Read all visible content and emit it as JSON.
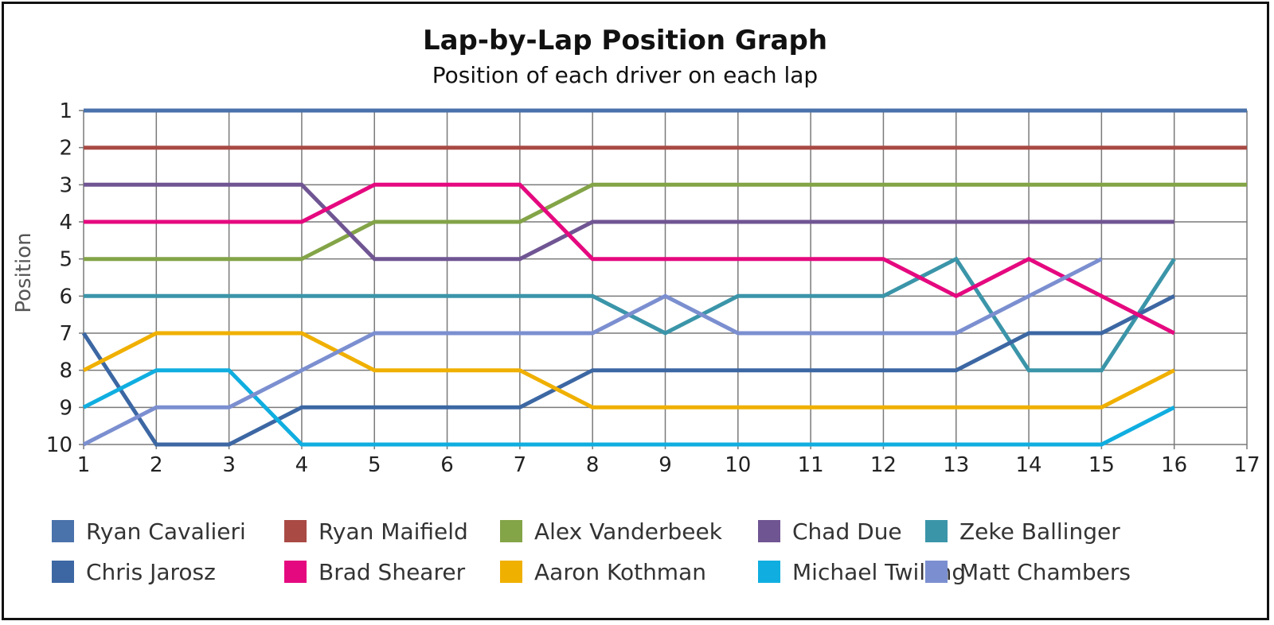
{
  "chart_data": {
    "type": "line",
    "title": "Lap-by-Lap Position Graph",
    "subtitle": "Position of each driver on each lap",
    "xlabel": "",
    "ylabel": "Position",
    "x_ticks": [
      1,
      2,
      3,
      4,
      5,
      6,
      7,
      8,
      9,
      10,
      11,
      12,
      13,
      14,
      15,
      16,
      17
    ],
    "y_ticks": [
      1,
      2,
      3,
      4,
      5,
      6,
      7,
      8,
      9,
      10
    ],
    "xlim": [
      1,
      17
    ],
    "ylim": [
      10,
      1
    ],
    "y_inverted": true,
    "grid": true,
    "legend_position": "bottom",
    "series": [
      {
        "name": "Ryan Cavalieri",
        "color": "#4a72ab",
        "x": [
          1,
          2,
          3,
          4,
          5,
          6,
          7,
          8,
          9,
          10,
          11,
          12,
          13,
          14,
          15,
          16,
          17
        ],
        "values": [
          1,
          1,
          1,
          1,
          1,
          1,
          1,
          1,
          1,
          1,
          1,
          1,
          1,
          1,
          1,
          1,
          1
        ]
      },
      {
        "name": "Ryan Maifield",
        "color": "#a94a45",
        "x": [
          1,
          2,
          3,
          4,
          5,
          6,
          7,
          8,
          9,
          10,
          11,
          12,
          13,
          14,
          15,
          16,
          17
        ],
        "values": [
          2,
          2,
          2,
          2,
          2,
          2,
          2,
          2,
          2,
          2,
          2,
          2,
          2,
          2,
          2,
          2,
          2
        ]
      },
      {
        "name": "Alex Vanderbeek",
        "color": "#83a447",
        "x": [
          1,
          2,
          3,
          4,
          5,
          6,
          7,
          8,
          9,
          10,
          11,
          12,
          13,
          14,
          15,
          16,
          17
        ],
        "values": [
          5,
          5,
          5,
          5,
          4,
          4,
          4,
          3,
          3,
          3,
          3,
          3,
          3,
          3,
          3,
          3,
          3
        ]
      },
      {
        "name": "Chad Due",
        "color": "#705593",
        "x": [
          1,
          2,
          3,
          4,
          5,
          6,
          7,
          8,
          9,
          10,
          11,
          12,
          13,
          14,
          15,
          16
        ],
        "values": [
          3,
          3,
          3,
          3,
          5,
          5,
          5,
          4,
          4,
          4,
          4,
          4,
          4,
          4,
          4,
          4
        ]
      },
      {
        "name": "Zeke Ballinger",
        "color": "#3b95a9",
        "x": [
          1,
          2,
          3,
          4,
          5,
          6,
          7,
          8,
          9,
          10,
          11,
          12,
          13,
          14,
          15,
          16
        ],
        "values": [
          6,
          6,
          6,
          6,
          6,
          6,
          6,
          6,
          7,
          6,
          6,
          6,
          5,
          8,
          8,
          5
        ]
      },
      {
        "name": "Chris Jarosz",
        "color": "#3c67a3",
        "x": [
          1,
          2,
          3,
          4,
          5,
          6,
          7,
          8,
          9,
          10,
          11,
          12,
          13,
          14,
          15,
          16
        ],
        "values": [
          7,
          10,
          10,
          9,
          9,
          9,
          9,
          8,
          8,
          8,
          8,
          8,
          8,
          7,
          7,
          6
        ]
      },
      {
        "name": "Brad Shearer",
        "color": "#e5097f",
        "x": [
          1,
          2,
          3,
          4,
          5,
          6,
          7,
          8,
          9,
          10,
          11,
          12,
          13,
          14,
          15,
          16
        ],
        "values": [
          4,
          4,
          4,
          4,
          3,
          3,
          3,
          5,
          5,
          5,
          5,
          5,
          6,
          5,
          6,
          7
        ]
      },
      {
        "name": "Aaron Kothman",
        "color": "#f0b000",
        "x": [
          1,
          2,
          3,
          4,
          5,
          6,
          7,
          8,
          9,
          10,
          11,
          12,
          13,
          14,
          15,
          16
        ],
        "values": [
          8,
          7,
          7,
          7,
          8,
          8,
          8,
          9,
          9,
          9,
          9,
          9,
          9,
          9,
          9,
          8
        ]
      },
      {
        "name": "Michael Twilling",
        "color": "#10aee0",
        "x": [
          1,
          2,
          3,
          4,
          5,
          6,
          7,
          8,
          9,
          10,
          11,
          12,
          13,
          14,
          15,
          16
        ],
        "values": [
          9,
          8,
          8,
          10,
          10,
          10,
          10,
          10,
          10,
          10,
          10,
          10,
          10,
          10,
          10,
          9
        ]
      },
      {
        "name": "Matt Chambers",
        "color": "#7b8fd0",
        "x": [
          1,
          2,
          3,
          4,
          5,
          6,
          7,
          8,
          9,
          10,
          11,
          12,
          13,
          14,
          15
        ],
        "values": [
          10,
          9,
          9,
          8,
          7,
          7,
          7,
          7,
          6,
          7,
          7,
          7,
          7,
          6,
          5
        ]
      }
    ]
  }
}
